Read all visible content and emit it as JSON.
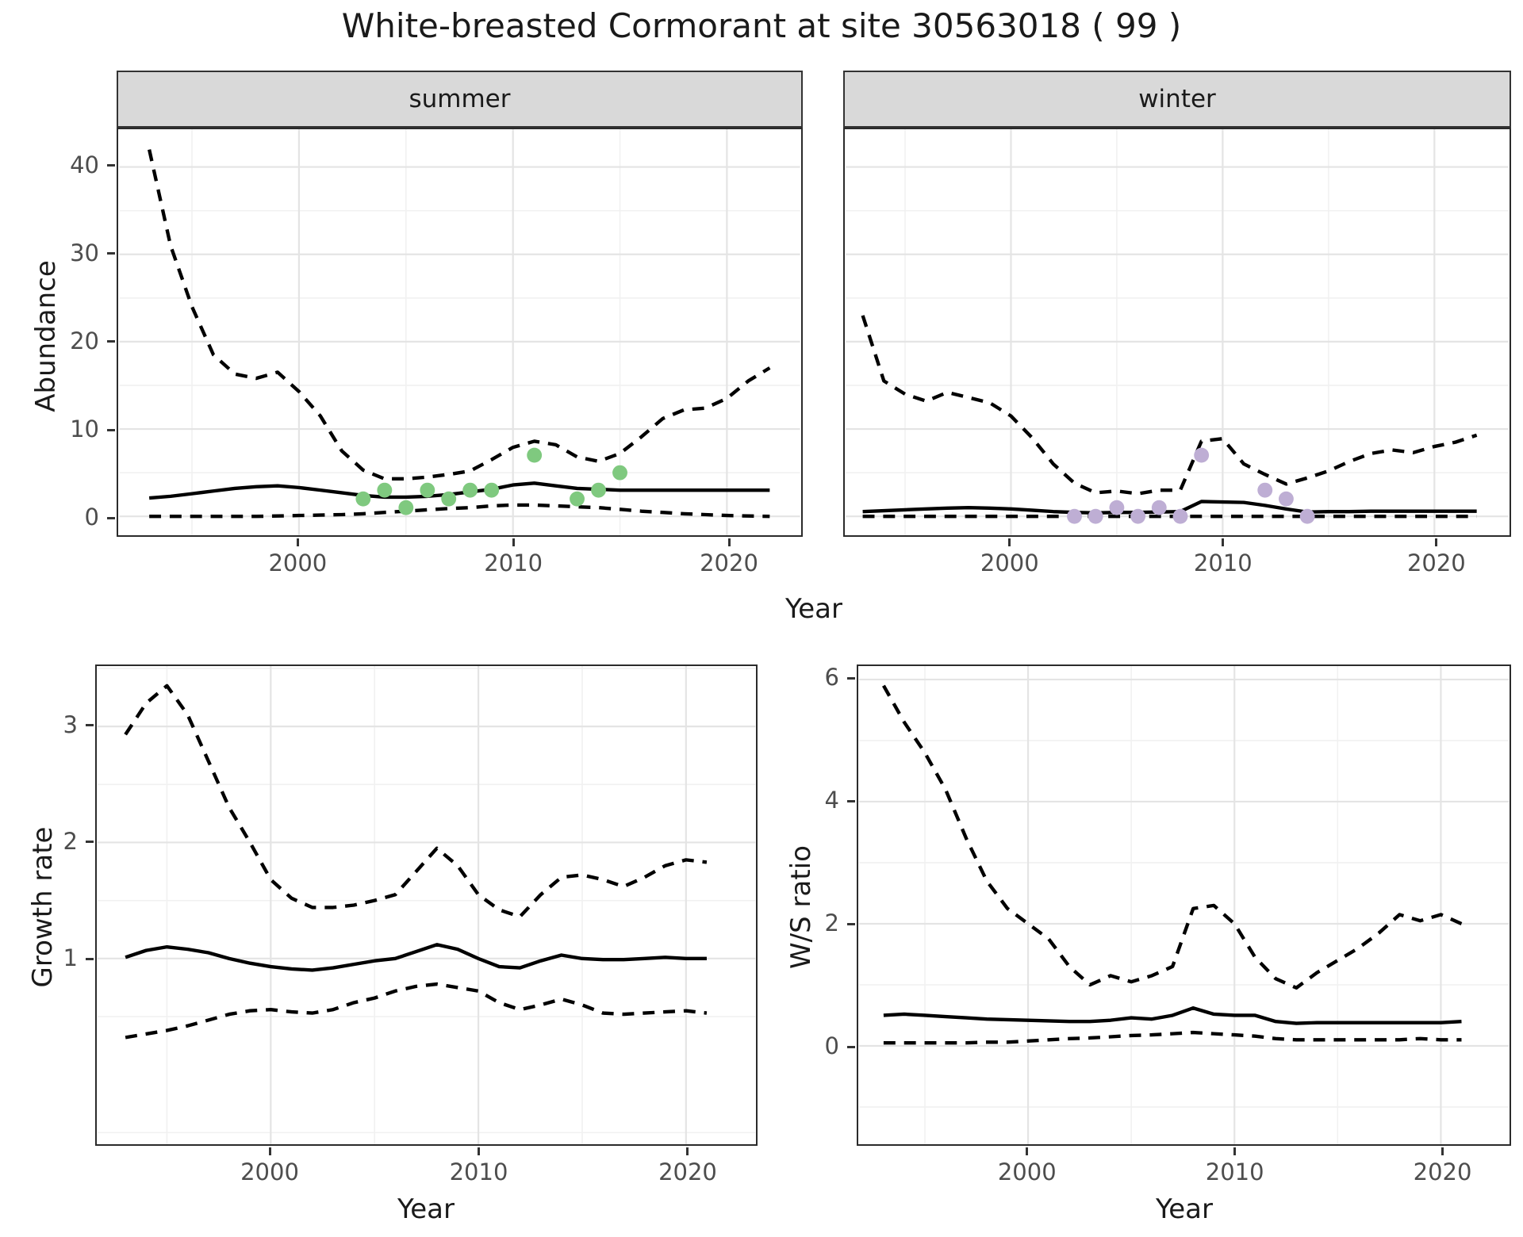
{
  "title": "White-breasted Cormorant at site 30563018 ( 99 )",
  "colors": {
    "summer_points": "#7FC97F",
    "winter_points": "#BEAED4",
    "line": "#000000",
    "strip_bg": "#D9D9D9",
    "grid_major": "#E4E4E4",
    "grid_minor": "#F1F1F1",
    "panel_border": "#2B2B2B",
    "tick_text": "#4D4D4D",
    "title_text": "#1A1A1A"
  },
  "chart_data": [
    {
      "key": "summer",
      "type": "line",
      "facet_label": "summer",
      "ylabel": "Abundance",
      "xlabel": "Year",
      "legend": "none",
      "grid": "on",
      "x": [
        1993,
        1994,
        1995,
        1996,
        1997,
        1998,
        1999,
        2000,
        2001,
        2002,
        2003,
        2004,
        2005,
        2006,
        2007,
        2008,
        2009,
        2010,
        2011,
        2012,
        2013,
        2014,
        2015,
        2016,
        2017,
        2018,
        2019,
        2020,
        2021,
        2022
      ],
      "series": [
        {
          "name": "upper_95ci",
          "style": "dashed",
          "values": [
            42,
            31,
            24,
            18.5,
            16.3,
            15.8,
            16.5,
            14.3,
            11.5,
            7.5,
            5.3,
            4.3,
            4.3,
            4.5,
            4.8,
            5.2,
            6.5,
            7.9,
            8.6,
            8.2,
            6.8,
            6.3,
            7.2,
            9.1,
            11.2,
            12.2,
            12.4,
            13.5,
            15.5,
            17
          ]
        },
        {
          "name": "mean",
          "style": "solid",
          "values": [
            2.1,
            2.3,
            2.6,
            2.9,
            3.2,
            3.4,
            3.5,
            3.3,
            3.0,
            2.7,
            2.4,
            2.2,
            2.2,
            2.3,
            2.5,
            2.8,
            3.1,
            3.6,
            3.8,
            3.5,
            3.2,
            3.1,
            3.0,
            3.0,
            3.0,
            3.0,
            3.0,
            3.0,
            3.0,
            3.0
          ]
        },
        {
          "name": "lower_95ci",
          "style": "dashed",
          "values": [
            0,
            0,
            0,
            0,
            0,
            0,
            0.05,
            0.1,
            0.15,
            0.2,
            0.3,
            0.45,
            0.6,
            0.75,
            0.9,
            1.0,
            1.2,
            1.3,
            1.3,
            1.2,
            1.1,
            1.0,
            0.8,
            0.6,
            0.45,
            0.3,
            0.2,
            0.1,
            0.05,
            0
          ]
        }
      ],
      "points": {
        "name": "observed-counts-summer",
        "color": "#7FC97F",
        "x": [
          2003,
          2004,
          2005,
          2006,
          2007,
          2008,
          2009,
          2011,
          2013,
          2014,
          2015
        ],
        "y": [
          2,
          3,
          1,
          3,
          2,
          3,
          3,
          7,
          2,
          3,
          5
        ]
      },
      "ylim": [
        0,
        44
      ],
      "yticks": [
        0,
        10,
        20,
        30,
        40
      ],
      "yminor": [
        5,
        15,
        25,
        35
      ],
      "xticks": [
        2000,
        2010,
        2020
      ],
      "xminor": [
        1995,
        2005,
        2015
      ]
    },
    {
      "key": "winter",
      "type": "line",
      "facet_label": "winter",
      "ylabel": "Abundance",
      "xlabel": "Year",
      "legend": "none",
      "grid": "on",
      "x": [
        1993,
        1994,
        1995,
        1996,
        1997,
        1998,
        1999,
        2000,
        2001,
        2002,
        2003,
        2004,
        2005,
        2006,
        2007,
        2008,
        2009,
        2010,
        2011,
        2012,
        2013,
        2014,
        2015,
        2016,
        2017,
        2018,
        2019,
        2020,
        2021,
        2022
      ],
      "series": [
        {
          "name": "upper_95ci",
          "style": "dashed",
          "values": [
            23,
            15.5,
            14,
            13.2,
            14.2,
            13.6,
            13,
            11.5,
            9,
            6,
            3.8,
            2.7,
            2.9,
            2.6,
            3,
            3,
            8.6,
            8.9,
            6,
            4.8,
            3.7,
            4.4,
            5.2,
            6.3,
            7.2,
            7.6,
            7.3,
            8,
            8.5,
            9.3
          ]
        },
        {
          "name": "mean",
          "style": "solid",
          "values": [
            0.55,
            0.65,
            0.75,
            0.85,
            0.95,
            1.0,
            0.95,
            0.85,
            0.7,
            0.55,
            0.45,
            0.4,
            0.45,
            0.45,
            0.5,
            0.55,
            1.7,
            1.65,
            1.6,
            1.25,
            0.85,
            0.5,
            0.55,
            0.55,
            0.6,
            0.6,
            0.6,
            0.6,
            0.6,
            0.6
          ]
        },
        {
          "name": "lower_95ci",
          "style": "dashed",
          "values": [
            0,
            0,
            0,
            0,
            0,
            0,
            0,
            0,
            0,
            0,
            0,
            0,
            0,
            0,
            0,
            0,
            0,
            0,
            0,
            0,
            0,
            0,
            0,
            0,
            0,
            0,
            0,
            0,
            0,
            0
          ]
        }
      ],
      "points": {
        "name": "observed-counts-winter",
        "color": "#BEAED4",
        "x": [
          2003,
          2004,
          2005,
          2006,
          2007,
          2008,
          2009,
          2012,
          2013,
          2014
        ],
        "y": [
          0,
          0,
          1,
          0,
          1,
          0,
          7,
          3,
          2,
          0
        ]
      },
      "ylim": [
        0,
        44
      ],
      "yticks": [
        0,
        10,
        20,
        30,
        40
      ],
      "yminor": [
        5,
        15,
        25,
        35
      ],
      "xticks": [
        2000,
        2010,
        2020
      ],
      "xminor": [
        1995,
        2005,
        2015
      ]
    },
    {
      "key": "growth",
      "type": "line",
      "facet_label": "",
      "ylabel": "Growth rate",
      "xlabel": "Year",
      "legend": "none",
      "grid": "on",
      "x": [
        1993,
        1994,
        1995,
        1996,
        1997,
        1998,
        1999,
        2000,
        2001,
        2002,
        2003,
        2004,
        2005,
        2006,
        2007,
        2008,
        2009,
        2010,
        2011,
        2012,
        2013,
        2014,
        2015,
        2016,
        2017,
        2018,
        2019,
        2020,
        2021
      ],
      "series": [
        {
          "name": "upper_95ci",
          "style": "dashed",
          "values": [
            2.93,
            3.2,
            3.35,
            3.1,
            2.7,
            2.3,
            2.0,
            1.68,
            1.52,
            1.44,
            1.44,
            1.46,
            1.5,
            1.55,
            1.75,
            1.95,
            1.8,
            1.55,
            1.42,
            1.36,
            1.55,
            1.7,
            1.72,
            1.68,
            1.62,
            1.7,
            1.8,
            1.85,
            1.83
          ]
        },
        {
          "name": "mean",
          "style": "solid",
          "values": [
            1.01,
            1.07,
            1.1,
            1.08,
            1.05,
            1.0,
            0.96,
            0.93,
            0.91,
            0.9,
            0.92,
            0.95,
            0.98,
            1.0,
            1.06,
            1.12,
            1.08,
            1.0,
            0.93,
            0.92,
            0.98,
            1.03,
            1.0,
            0.99,
            0.99,
            1.0,
            1.01,
            1.0,
            1.0
          ]
        },
        {
          "name": "lower_95ci",
          "style": "dashed",
          "values": [
            0.32,
            0.35,
            0.38,
            0.42,
            0.47,
            0.52,
            0.55,
            0.56,
            0.54,
            0.53,
            0.56,
            0.62,
            0.66,
            0.72,
            0.76,
            0.78,
            0.75,
            0.72,
            0.62,
            0.56,
            0.6,
            0.65,
            0.6,
            0.53,
            0.52,
            0.53,
            0.54,
            0.55,
            0.53
          ]
        }
      ],
      "points": null,
      "ylim": [
        0.3,
        3.4
      ],
      "yticks": [
        1,
        2,
        3
      ],
      "yminor": [
        -0.5,
        0.5,
        1.5,
        2.5,
        3.5
      ],
      "xticks": [
        2000,
        2010,
        2020
      ],
      "xminor": [
        1995,
        2005,
        2015
      ]
    },
    {
      "key": "ws",
      "type": "line",
      "facet_label": "",
      "ylabel": "W/S ratio",
      "xlabel": "Year",
      "legend": "none",
      "grid": "on",
      "x": [
        1993,
        1994,
        1995,
        1996,
        1997,
        1998,
        1999,
        2000,
        2001,
        2002,
        2003,
        2004,
        2005,
        2006,
        2007,
        2008,
        2009,
        2010,
        2011,
        2012,
        2013,
        2014,
        2015,
        2016,
        2017,
        2018,
        2019,
        2020,
        2021
      ],
      "series": [
        {
          "name": "upper_95ci",
          "style": "dashed",
          "values": [
            5.9,
            5.3,
            4.8,
            4.2,
            3.4,
            2.7,
            2.25,
            2.0,
            1.75,
            1.3,
            1.0,
            1.15,
            1.05,
            1.15,
            1.3,
            2.25,
            2.3,
            2.0,
            1.45,
            1.1,
            0.95,
            1.2,
            1.4,
            1.6,
            1.85,
            2.15,
            2.05,
            2.15,
            2.0
          ]
        },
        {
          "name": "mean",
          "style": "solid",
          "values": [
            0.5,
            0.52,
            0.5,
            0.48,
            0.46,
            0.44,
            0.43,
            0.42,
            0.41,
            0.4,
            0.4,
            0.42,
            0.46,
            0.44,
            0.5,
            0.62,
            0.52,
            0.5,
            0.5,
            0.4,
            0.37,
            0.38,
            0.38,
            0.38,
            0.38,
            0.38,
            0.38,
            0.38,
            0.4
          ]
        },
        {
          "name": "lower_95ci",
          "style": "dashed",
          "values": [
            0.05,
            0.05,
            0.05,
            0.05,
            0.05,
            0.06,
            0.06,
            0.08,
            0.1,
            0.12,
            0.13,
            0.15,
            0.17,
            0.18,
            0.2,
            0.22,
            0.2,
            0.18,
            0.16,
            0.12,
            0.1,
            0.1,
            0.1,
            0.1,
            0.1,
            0.1,
            0.12,
            0.1,
            0.1
          ]
        }
      ],
      "points": null,
      "ylim": [
        0,
        6
      ],
      "yticks": [
        0,
        2,
        4,
        6
      ],
      "yminor": [
        -1,
        1,
        3,
        5
      ],
      "xticks": [
        2000,
        2010,
        2020
      ],
      "xminor": [
        1995,
        2005,
        2015
      ]
    }
  ]
}
